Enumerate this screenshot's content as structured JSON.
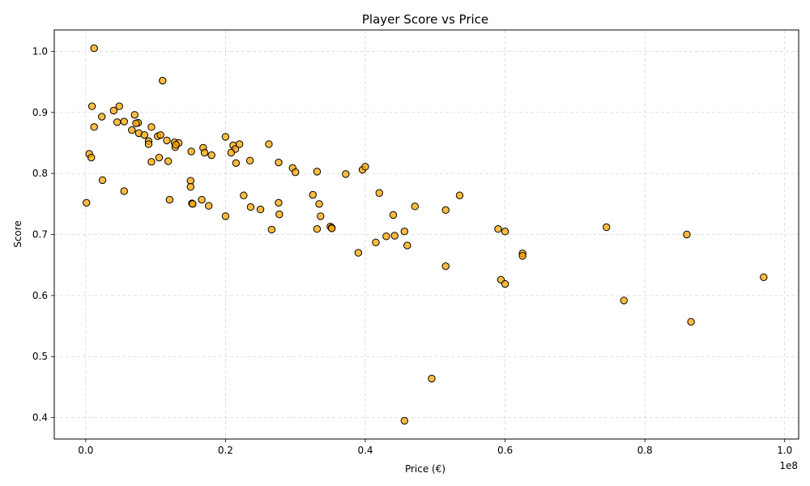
{
  "chart_data": {
    "type": "scatter",
    "title": "Player Score vs Price",
    "xlabel": "Price (€)",
    "ylabel": "Score",
    "x_offset_label": "1e8",
    "xlim": [
      -0.045,
      1.02
    ],
    "ylim": [
      0.365,
      1.035
    ],
    "x_ticks": [
      0.0,
      0.2,
      0.4,
      0.6,
      0.8,
      1.0
    ],
    "x_tick_labels": [
      "0.0",
      "0.2",
      "0.4",
      "0.6",
      "0.8",
      "1.0"
    ],
    "y_ticks": [
      0.4,
      0.5,
      0.6,
      0.7,
      0.8,
      0.9,
      1.0
    ],
    "y_tick_labels": [
      "0.4",
      "0.5",
      "0.6",
      "0.7",
      "0.8",
      "0.9",
      "1.0"
    ],
    "grid": true,
    "marker_color": "#ffa500",
    "marker_edge_color": "#000000",
    "x": [
      0.012,
      0.11,
      0.009,
      0.023,
      0.012,
      0.04,
      0.045,
      0.048,
      0.055,
      0.07,
      0.075,
      0.072,
      0.066,
      0.076,
      0.084,
      0.094,
      0.103,
      0.107,
      0.09,
      0.09,
      0.116,
      0.127,
      0.128,
      0.133,
      0.129,
      0.151,
      0.168,
      0.17,
      0.18,
      0.2,
      0.211,
      0.214,
      0.208,
      0.22,
      0.215,
      0.235,
      0.262,
      0.276,
      0.296,
      0.3,
      0.331,
      0.372,
      0.396,
      0.4,
      0.094,
      0.105,
      0.118,
      0.005,
      0.008,
      0.024,
      0.15,
      0.15,
      0.055,
      0.12,
      0.152,
      0.153,
      0.166,
      0.176,
      0.2,
      0.226,
      0.236,
      0.25,
      0.266,
      0.276,
      0.277,
      0.325,
      0.334,
      0.336,
      0.331,
      0.35,
      0.352,
      0.352,
      0.39,
      0.415,
      0.42,
      0.43,
      0.44,
      0.442,
      0.456,
      0.46,
      0.471,
      0.515,
      0.535,
      0.495,
      0.456,
      0.515,
      0.59,
      0.594,
      0.6,
      0.6,
      0.625,
      0.625,
      0.745,
      0.77,
      0.86,
      0.866,
      0.97,
      0.001
    ],
    "y": [
      1.005,
      0.952,
      0.91,
      0.893,
      0.876,
      0.903,
      0.884,
      0.91,
      0.885,
      0.896,
      0.883,
      0.882,
      0.871,
      0.866,
      0.863,
      0.876,
      0.861,
      0.863,
      0.853,
      0.848,
      0.854,
      0.851,
      0.843,
      0.85,
      0.847,
      0.836,
      0.842,
      0.834,
      0.83,
      0.86,
      0.846,
      0.84,
      0.834,
      0.848,
      0.817,
      0.821,
      0.848,
      0.818,
      0.809,
      0.802,
      0.803,
      0.799,
      0.806,
      0.811,
      0.819,
      0.826,
      0.82,
      0.832,
      0.826,
      0.789,
      0.788,
      0.778,
      0.771,
      0.757,
      0.751,
      0.75,
      0.757,
      0.747,
      0.73,
      0.764,
      0.745,
      0.741,
      0.708,
      0.752,
      0.733,
      0.765,
      0.75,
      0.73,
      0.709,
      0.713,
      0.711,
      0.71,
      0.67,
      0.687,
      0.768,
      0.697,
      0.732,
      0.698,
      0.705,
      0.682,
      0.746,
      0.74,
      0.764,
      0.464,
      0.395,
      0.648,
      0.709,
      0.626,
      0.705,
      0.619,
      0.669,
      0.665,
      0.712,
      0.592,
      0.7,
      0.557,
      0.63,
      0.752
    ]
  }
}
